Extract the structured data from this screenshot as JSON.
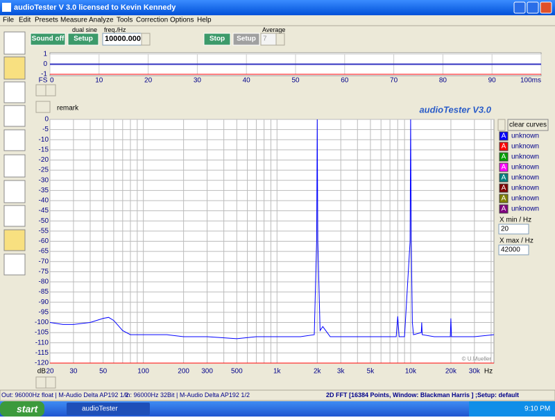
{
  "window": {
    "title": "audioTester  V 3.0   licensed to Kevin Kennedy"
  },
  "menu": [
    "File",
    "Edit",
    "Presets",
    "Measure",
    "Analyze",
    "Tools",
    "Correction",
    "Options",
    "Help"
  ],
  "toolbar": {
    "sound_off": "Sound off",
    "dual_sine": "dual sine",
    "setup": "Setup",
    "freq_label": "freq./Hz",
    "freq_value": "10000.0000",
    "stop": "Stop",
    "setup2": "Setup",
    "average_label": "Average",
    "average_value": "7"
  },
  "chart_data": [
    {
      "type": "line",
      "axis_label": "FS",
      "xlim": [
        0,
        100
      ],
      "ylim": [
        -1,
        1
      ],
      "xticks": [
        0,
        10,
        20,
        30,
        40,
        50,
        60,
        70,
        80,
        90,
        {
          "value": 100,
          "label": "100ms"
        }
      ],
      "yticks": [
        1,
        0,
        -1
      ],
      "series": [
        {
          "color": "#3030c0",
          "x": [
            0,
            100
          ],
          "values": [
            0,
            0
          ]
        }
      ]
    },
    {
      "type": "line",
      "log_x": true,
      "watermark": "audioTester  V3.0",
      "remark": "remark",
      "copyright": "© U.Mueller",
      "x_unit": "Hz",
      "y_unit": "dB",
      "xlim": [
        20,
        42000
      ],
      "ylim": [
        -120,
        0
      ],
      "xticks": [
        20,
        30,
        50,
        100,
        200,
        300,
        500,
        {
          "value": 1000,
          "label": "1k"
        },
        {
          "value": 2000,
          "label": "2k"
        },
        {
          "value": 3000,
          "label": "3k"
        },
        {
          "value": 5000,
          "label": "5k"
        },
        {
          "value": 10000,
          "label": "10k"
        },
        {
          "value": 20000,
          "label": "20k"
        },
        {
          "value": 30000,
          "label": "30k"
        }
      ],
      "xminor": [
        40,
        60,
        70,
        80,
        90,
        400,
        600,
        700,
        800,
        900,
        4000,
        6000,
        7000,
        8000,
        9000,
        40000
      ],
      "yticks": [
        0,
        -5,
        -10,
        -15,
        -20,
        -25,
        -30,
        -35,
        -40,
        -45,
        -50,
        -55,
        -60,
        -65,
        -70,
        -75,
        -80,
        -85,
        -90,
        -95,
        -100,
        -105,
        -110,
        -115,
        -120
      ],
      "grid": true,
      "series": [
        {
          "name": "unknown",
          "color": "#0000ff",
          "x": [
            20,
            25,
            30,
            40,
            50,
            55,
            60,
            70,
            80,
            100,
            150,
            200,
            300,
            500,
            700,
            1000,
            1500,
            1900,
            1980,
            2000,
            2020,
            2100,
            2200,
            2500,
            3000,
            4000,
            6000,
            7800,
            8000,
            8200,
            9000,
            9900,
            10000,
            10100,
            10300,
            10500,
            12000,
            12100,
            12200,
            15000,
            19800,
            20000,
            20200,
            30000,
            42000
          ],
          "values": [
            -100,
            -101,
            -101,
            -100,
            -98,
            -97.5,
            -99,
            -104,
            -106,
            -106,
            -106,
            -107,
            -107,
            -108,
            -107,
            -107,
            -107,
            -106,
            -60,
            0,
            -60,
            -104,
            -102,
            -107,
            -107,
            -107,
            -107,
            -107,
            -97,
            -107,
            -107,
            -60,
            0,
            -60,
            -100,
            -106,
            -105,
            -100,
            -106,
            -107,
            -107,
            -98,
            -107,
            -107,
            -106
          ]
        }
      ]
    }
  ],
  "panel": {
    "clear": "clear curves",
    "legend": [
      {
        "letter": "A",
        "label": "unknown",
        "color": "#0000ff"
      },
      {
        "letter": "A",
        "label": "unknown",
        "color": "#ff0000"
      },
      {
        "letter": "A",
        "label": "unknown",
        "color": "#00a000"
      },
      {
        "letter": "A",
        "label": "unknown",
        "color": "#ff00ff"
      },
      {
        "letter": "A",
        "label": "unknown",
        "color": "#008080"
      },
      {
        "letter": "A",
        "label": "unknown",
        "color": "#800000"
      },
      {
        "letter": "A",
        "label": "unknown",
        "color": "#808000"
      },
      {
        "letter": "A",
        "label": "unknown",
        "color": "#800080"
      }
    ],
    "xmin_label": "X min / Hz",
    "xmin": "20",
    "xmax_label": "X max / Hz",
    "xmax": "42000"
  },
  "status": {
    "out": "Out: 96000Hz float  | M-Audio Delta AP192 1/2",
    "in": "In: 96000Hz 32Bit  | M-Audio Delta AP192 1/2",
    "fft": "2D FFT [16384 Points, Window: Blackman Harris ] ;Setup:  default"
  },
  "taskbar": {
    "start": "start",
    "task": "audioTester",
    "clock": "9:10 PM"
  }
}
